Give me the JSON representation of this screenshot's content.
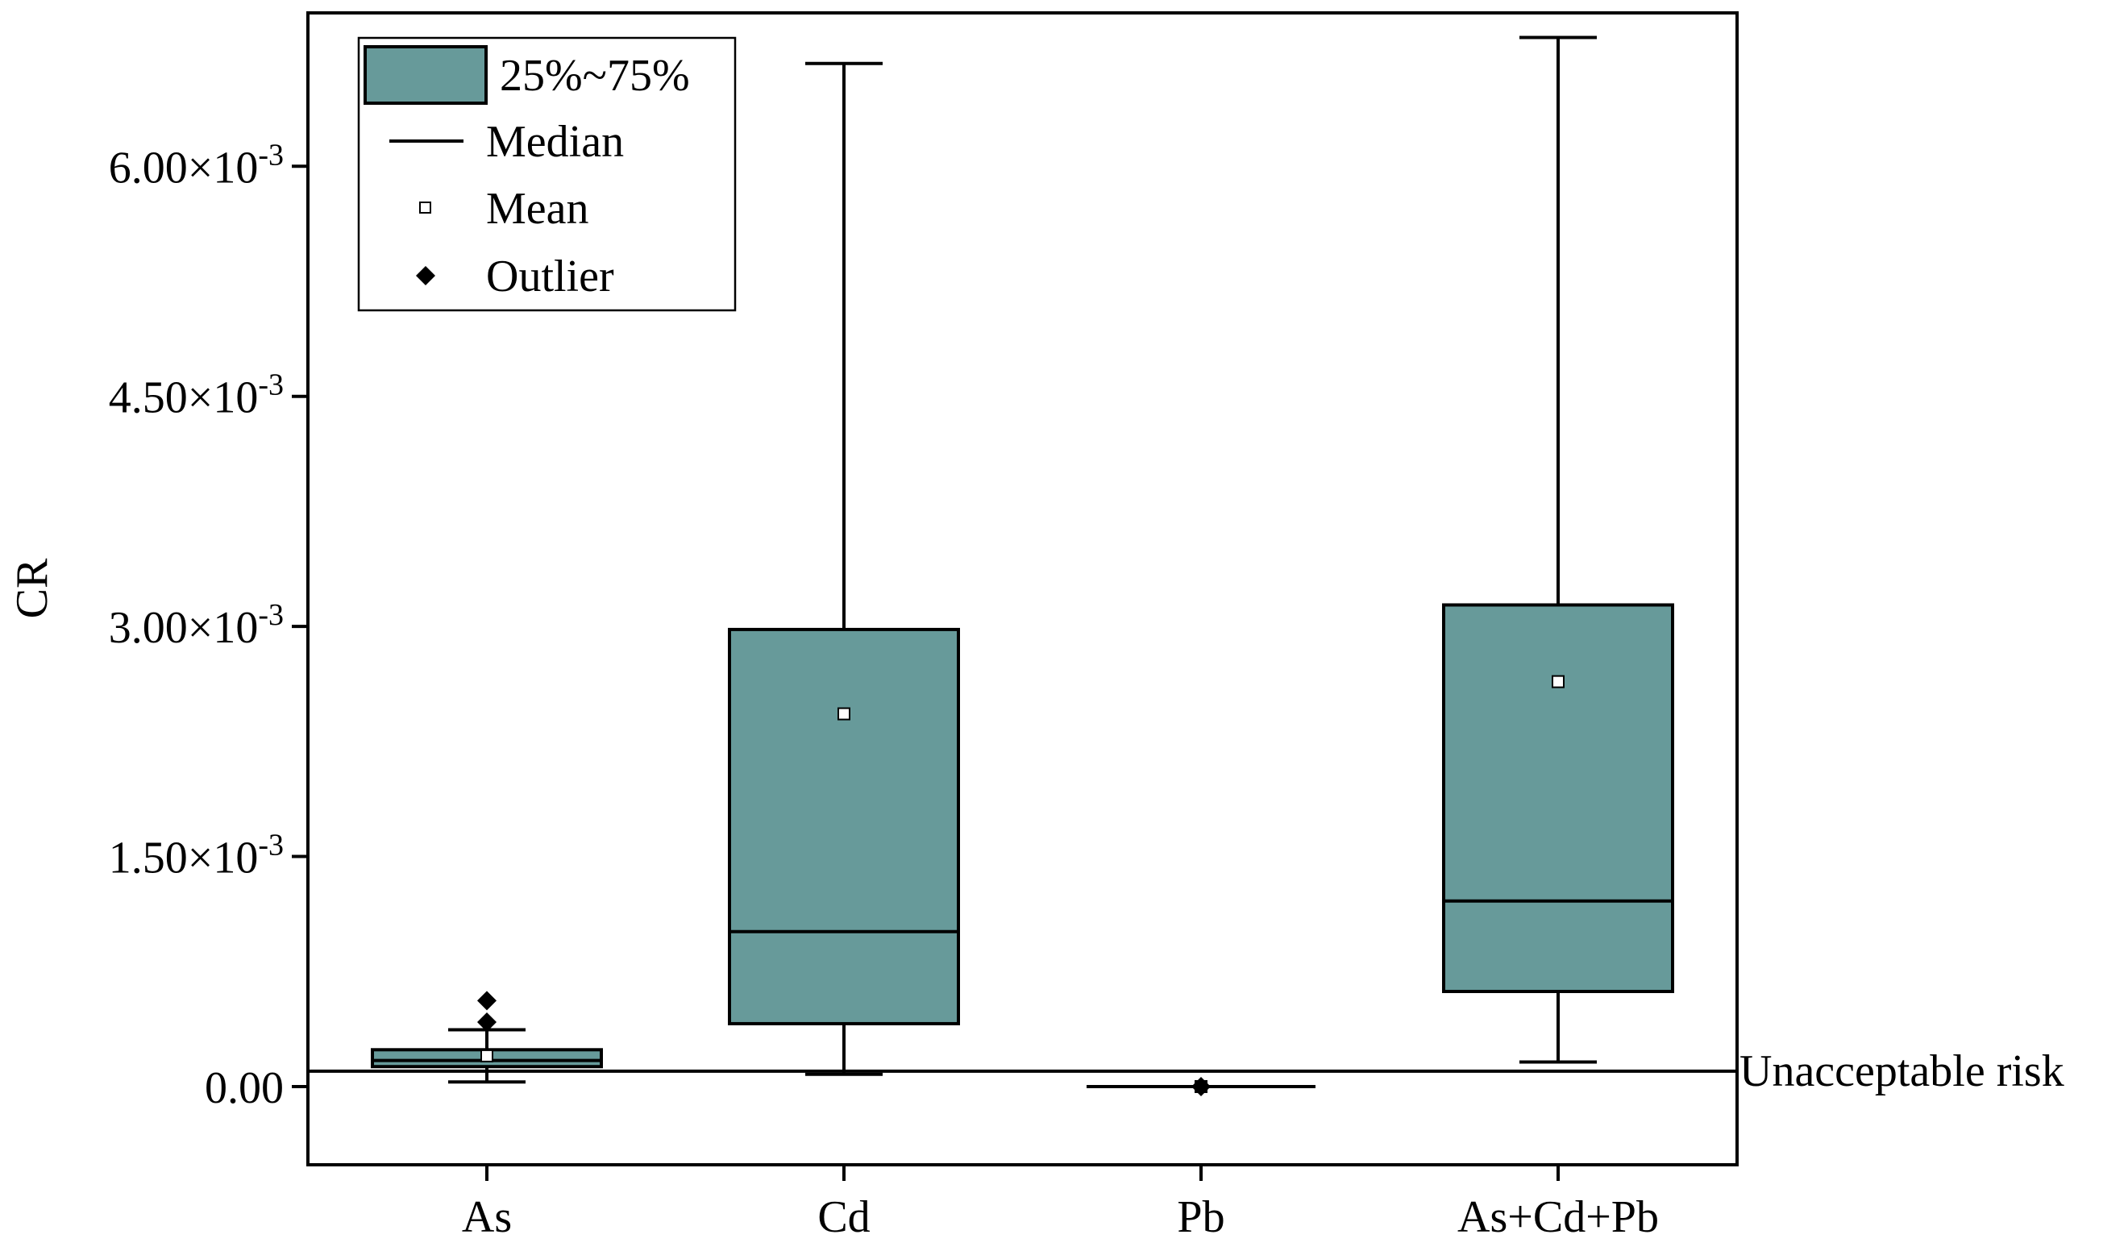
{
  "chart_data": {
    "type": "box",
    "ylabel": "CR",
    "xlabel": "",
    "ylim": [
      -0.00051,
      0.007
    ],
    "yticks": [
      {
        "value": 0,
        "mantissa": "0.00",
        "exp": ""
      },
      {
        "value": 0.0015,
        "mantissa": "1.50×10",
        "exp": "-3"
      },
      {
        "value": 0.003,
        "mantissa": "3.00×10",
        "exp": "-3"
      },
      {
        "value": 0.0045,
        "mantissa": "4.50×10",
        "exp": "-3"
      },
      {
        "value": 0.006,
        "mantissa": "6.00×10",
        "exp": "-3"
      }
    ],
    "categories": [
      "As",
      "Cd",
      "Pb",
      "As+Cd+Pb"
    ],
    "boxes": [
      {
        "label": "As",
        "q1": 0.00013,
        "median": 0.00017,
        "q3": 0.00024,
        "mean": 0.0002,
        "whisker_low": 3e-05,
        "whisker_high": 0.00037,
        "outliers": [
          0.00042,
          0.00056
        ]
      },
      {
        "label": "Cd",
        "q1": 0.00041,
        "median": 0.00101,
        "q3": 0.00298,
        "mean": 0.00243,
        "whisker_low": 8e-05,
        "whisker_high": 0.00667,
        "outliers": []
      },
      {
        "label": "Pb",
        "q1": 0.0,
        "median": 0.0,
        "q3": 0.0,
        "mean": 0.0,
        "whisker_low": 0.0,
        "whisker_high": 0.0,
        "outliers": [
          0.0
        ]
      },
      {
        "label": "As+Cd+Pb",
        "q1": 0.00062,
        "median": 0.00121,
        "q3": 0.00314,
        "mean": 0.00264,
        "whisker_low": 0.00016,
        "whisker_high": 0.00684,
        "outliers": []
      }
    ],
    "reference_line": {
      "value": 0.0001,
      "label": "Unacceptable risk"
    },
    "legend": {
      "position": "top-left",
      "items": [
        {
          "kind": "box",
          "label": "25%~75%"
        },
        {
          "kind": "line",
          "label": "Median"
        },
        {
          "kind": "mean",
          "label": "Mean"
        },
        {
          "kind": "outlier",
          "label": "Outlier"
        }
      ]
    },
    "colors": {
      "box_fill": "#679a9a",
      "stroke": "#000000",
      "background": "#ffffff"
    }
  }
}
